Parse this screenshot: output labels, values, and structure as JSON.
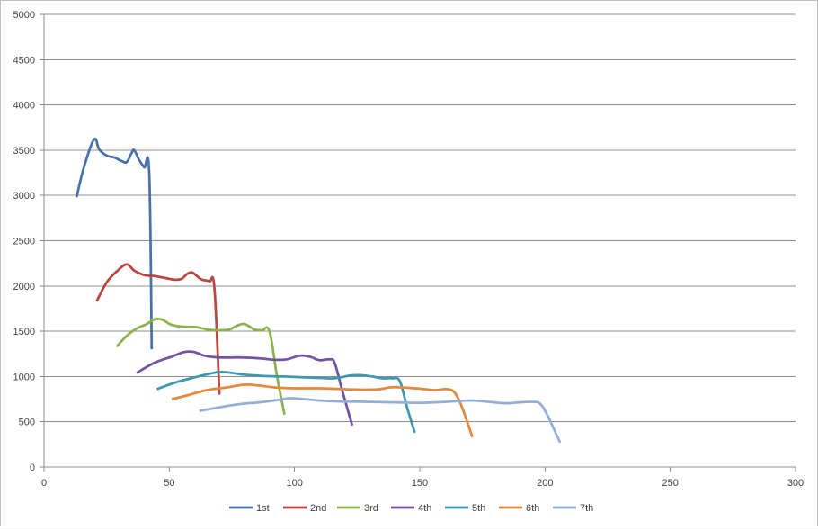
{
  "chart_data": {
    "type": "line",
    "title": "",
    "xlabel": "",
    "ylabel": "",
    "xlim": [
      0,
      300
    ],
    "ylim": [
      0,
      5000
    ],
    "x_ticks": [
      0,
      50,
      100,
      150,
      200,
      250,
      300
    ],
    "y_ticks": [
      0,
      500,
      1000,
      1500,
      2000,
      2500,
      3000,
      3500,
      4000,
      4500,
      5000
    ],
    "grid": "horizontal",
    "legend_position": "bottom",
    "series": [
      {
        "name": "1st",
        "color": "#4a72a8",
        "points": [
          [
            13,
            2980
          ],
          [
            16,
            3320
          ],
          [
            20,
            3620
          ],
          [
            22,
            3510
          ],
          [
            25,
            3440
          ],
          [
            28,
            3420
          ],
          [
            31,
            3380
          ],
          [
            33,
            3370
          ],
          [
            35,
            3470
          ],
          [
            36,
            3500
          ],
          [
            38,
            3390
          ],
          [
            40,
            3310
          ],
          [
            42,
            3250
          ],
          [
            43,
            1300
          ]
        ]
      },
      {
        "name": "2nd",
        "color": "#b94744",
        "points": [
          [
            21,
            1830
          ],
          [
            25,
            2040
          ],
          [
            29,
            2160
          ],
          [
            33,
            2240
          ],
          [
            36,
            2170
          ],
          [
            40,
            2120
          ],
          [
            44,
            2110
          ],
          [
            48,
            2090
          ],
          [
            52,
            2070
          ],
          [
            55,
            2080
          ],
          [
            57,
            2130
          ],
          [
            59,
            2150
          ],
          [
            61,
            2110
          ],
          [
            63,
            2070
          ],
          [
            66,
            2050
          ],
          [
            68,
            1980
          ],
          [
            70,
            800
          ]
        ]
      },
      {
        "name": "3rd",
        "color": "#8eb14c",
        "points": [
          [
            29,
            1330
          ],
          [
            33,
            1450
          ],
          [
            37,
            1530
          ],
          [
            41,
            1580
          ],
          [
            44,
            1630
          ],
          [
            47,
            1630
          ],
          [
            51,
            1570
          ],
          [
            56,
            1550
          ],
          [
            61,
            1545
          ],
          [
            65,
            1520
          ],
          [
            70,
            1510
          ],
          [
            74,
            1520
          ],
          [
            77,
            1560
          ],
          [
            80,
            1580
          ],
          [
            84,
            1520
          ],
          [
            87,
            1510
          ],
          [
            90,
            1500
          ],
          [
            93,
            1000
          ],
          [
            96,
            580
          ]
        ]
      },
      {
        "name": "4th",
        "color": "#7254a0",
        "points": [
          [
            37,
            1040
          ],
          [
            44,
            1150
          ],
          [
            51,
            1220
          ],
          [
            56,
            1270
          ],
          [
            60,
            1270
          ],
          [
            64,
            1230
          ],
          [
            70,
            1210
          ],
          [
            78,
            1210
          ],
          [
            86,
            1200
          ],
          [
            92,
            1185
          ],
          [
            97,
            1190
          ],
          [
            102,
            1230
          ],
          [
            106,
            1220
          ],
          [
            110,
            1180
          ],
          [
            114,
            1190
          ],
          [
            116,
            1150
          ],
          [
            119,
            850
          ],
          [
            123,
            460
          ]
        ]
      },
      {
        "name": "5th",
        "color": "#3f98ad",
        "points": [
          [
            45,
            860
          ],
          [
            52,
            930
          ],
          [
            60,
            990
          ],
          [
            66,
            1030
          ],
          [
            70,
            1050
          ],
          [
            75,
            1040
          ],
          [
            80,
            1020
          ],
          [
            88,
            1005
          ],
          [
            96,
            1000
          ],
          [
            104,
            990
          ],
          [
            110,
            985
          ],
          [
            116,
            980
          ],
          [
            122,
            1010
          ],
          [
            126,
            1015
          ],
          [
            131,
            1000
          ],
          [
            135,
            980
          ],
          [
            139,
            980
          ],
          [
            142,
            950
          ],
          [
            145,
            650
          ],
          [
            148,
            380
          ]
        ]
      },
      {
        "name": "6th",
        "color": "#e4883f",
        "points": [
          [
            51,
            750
          ],
          [
            57,
            790
          ],
          [
            65,
            850
          ],
          [
            73,
            880
          ],
          [
            80,
            910
          ],
          [
            86,
            900
          ],
          [
            92,
            880
          ],
          [
            100,
            870
          ],
          [
            110,
            870
          ],
          [
            120,
            860
          ],
          [
            128,
            855
          ],
          [
            134,
            860
          ],
          [
            138,
            880
          ],
          [
            142,
            880
          ],
          [
            148,
            870
          ],
          [
            152,
            860
          ],
          [
            156,
            850
          ],
          [
            161,
            860
          ],
          [
            164,
            820
          ],
          [
            167,
            650
          ],
          [
            171,
            330
          ]
        ]
      },
      {
        "name": "7th",
        "color": "#96aed4",
        "points": [
          [
            62,
            620
          ],
          [
            70,
            660
          ],
          [
            78,
            695
          ],
          [
            86,
            715
          ],
          [
            93,
            740
          ],
          [
            98,
            760
          ],
          [
            104,
            750
          ],
          [
            110,
            735
          ],
          [
            118,
            725
          ],
          [
            130,
            720
          ],
          [
            140,
            715
          ],
          [
            150,
            710
          ],
          [
            160,
            720
          ],
          [
            170,
            735
          ],
          [
            176,
            725
          ],
          [
            184,
            705
          ],
          [
            190,
            715
          ],
          [
            195,
            720
          ],
          [
            198,
            700
          ],
          [
            201,
            570
          ],
          [
            206,
            270
          ]
        ]
      }
    ]
  }
}
